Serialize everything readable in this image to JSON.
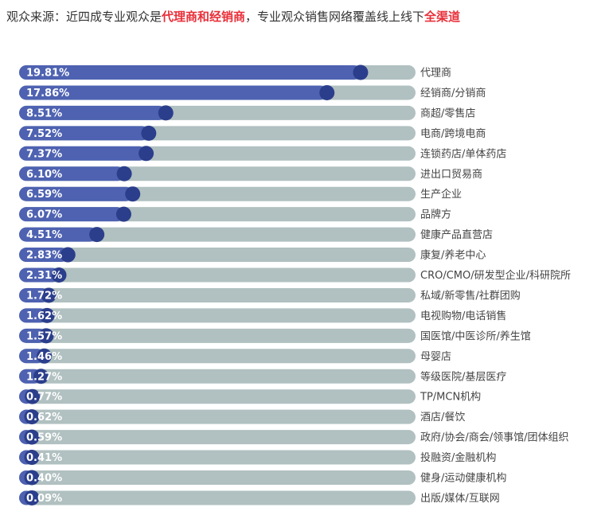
{
  "title": {
    "part1": "观众来源：近四成专业观众是",
    "highlight1": "代理商和经销商",
    "part2": "，专业观众销售网络覆盖线上线下",
    "highlight2": "全渠道"
  },
  "colors": {
    "track": "#b1c0c0",
    "fill": "#4e62b1",
    "marker": "#2b3e8c",
    "highlight": "#e8303a"
  },
  "chart_data": {
    "type": "bar",
    "orientation": "horizontal",
    "categories": [
      "代理商",
      "经销商/分销商",
      "商超/零售店",
      "电商/跨境电商",
      "连锁药店/单体药店",
      "进出口贸易商",
      "生产企业",
      "品牌方",
      "健康产品直营店",
      "康复/养老中心",
      "CRO/CMO/研发型企业/科研院所",
      "私域/新零售/社群团购",
      "电视购物/电话销售",
      "国医馆/中医诊所/养生馆",
      "母婴店",
      "等级医院/基层医疗",
      "TP/MCN机构",
      "酒店/餐饮",
      "政府/协会/商会/领事馆/团体组织",
      "投融资/金融机构",
      "健身/运动健康机构",
      "出版/媒体/互联网"
    ],
    "values": [
      19.81,
      17.86,
      8.51,
      7.52,
      7.37,
      6.1,
      6.59,
      6.07,
      4.51,
      2.83,
      2.31,
      1.72,
      1.62,
      1.57,
      1.46,
      1.27,
      0.77,
      0.62,
      0.59,
      0.41,
      0.4,
      0.09
    ],
    "data_labels": [
      "19.81%",
      "17.86%",
      "8.51%",
      "7.52%",
      "7.37%",
      "6.10%",
      "6.59%",
      "6.07%",
      "4.51%",
      "2.83%",
      "2.31%",
      "1.72%",
      "1.62%",
      "1.57%",
      "1.46%",
      "1.27%",
      "0.77%",
      "0.62%",
      "0.59%",
      "0.41%",
      "0.40%",
      "0.09%"
    ],
    "xlim": [
      0,
      23
    ],
    "grid": false,
    "legend": "none"
  }
}
